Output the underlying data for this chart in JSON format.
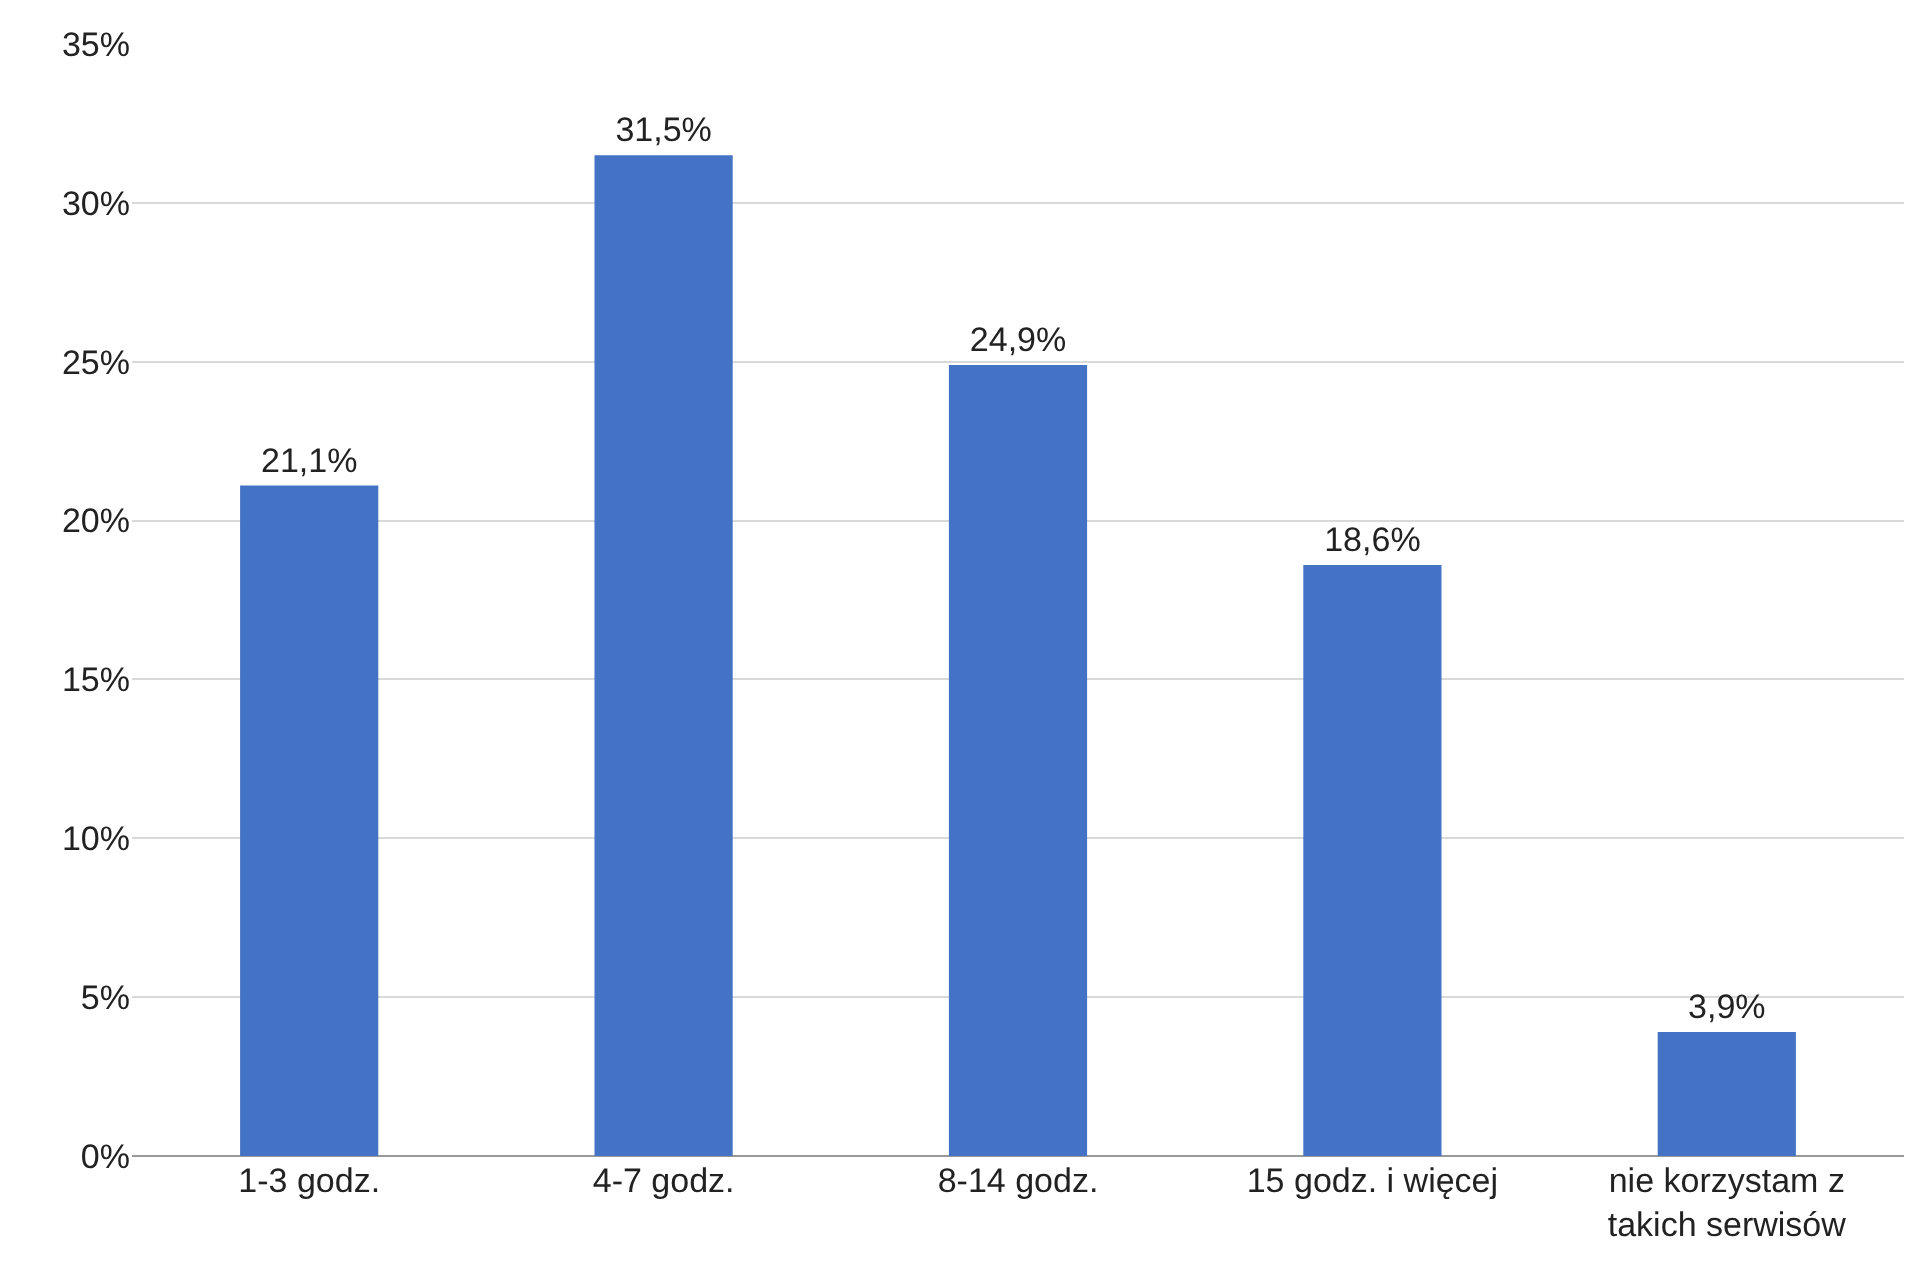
{
  "chart_data": {
    "type": "bar",
    "categories": [
      "1-3 godz.",
      "4-7 godz.",
      "8-14 godz.",
      "15 godz. i więcej",
      "nie korzystam z\ntakich serwisów"
    ],
    "values": [
      21.1,
      31.5,
      24.9,
      18.6,
      3.9
    ],
    "value_labels": [
      "21,1%",
      "31,5%",
      "24,9%",
      "18,6%",
      "3,9%"
    ],
    "color": "#4472c4",
    "ylim": [
      0,
      35
    ],
    "yticks": [
      {
        "value": 0,
        "label": "0%"
      },
      {
        "value": 5,
        "label": "5%"
      },
      {
        "value": 10,
        "label": "10%"
      },
      {
        "value": 15,
        "label": "15%"
      },
      {
        "value": 20,
        "label": "20%"
      },
      {
        "value": 25,
        "label": "25%"
      },
      {
        "value": 30,
        "label": "30%"
      },
      {
        "value": 35,
        "label": "35%"
      }
    ],
    "grid": "y",
    "legend": false
  }
}
